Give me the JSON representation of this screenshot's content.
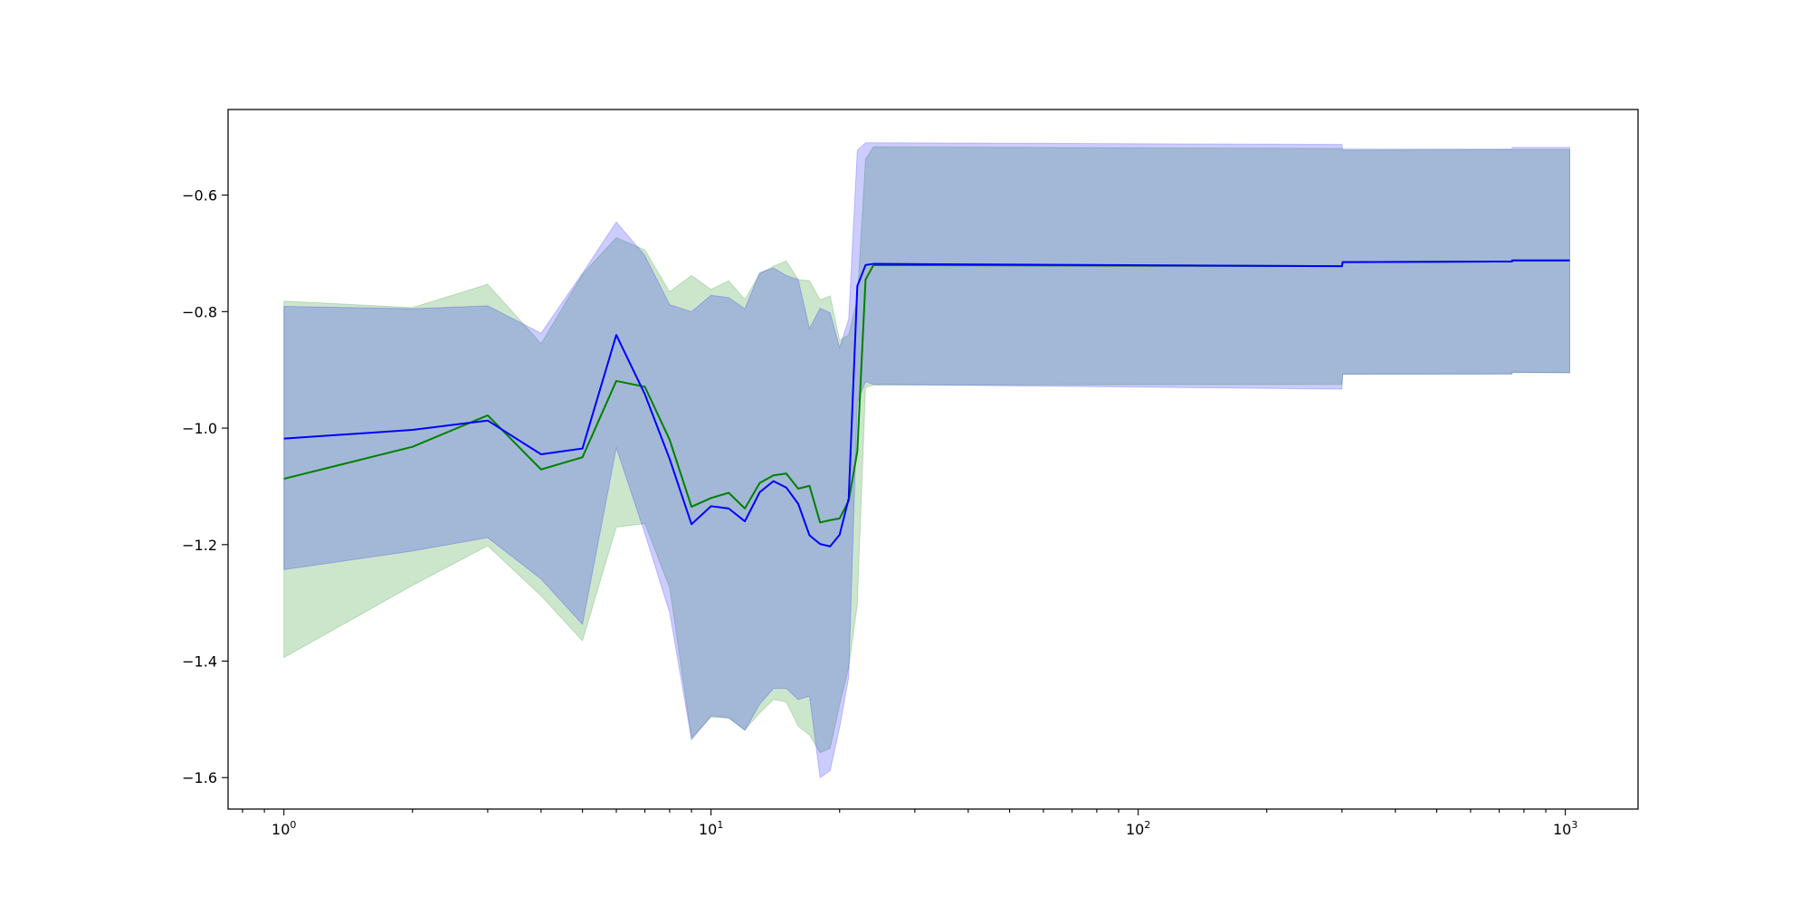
{
  "chart_data": {
    "type": "line",
    "title": "",
    "xlabel": "",
    "ylabel": "",
    "x_scale": "log",
    "xlim": [
      0.74,
      1480
    ],
    "ylim": [
      -1.654,
      -0.453
    ],
    "grid": false,
    "legend": "none",
    "x_ticks": [
      {
        "value": 1,
        "base": "10",
        "exp": "0"
      },
      {
        "value": 10,
        "base": "10",
        "exp": "1"
      },
      {
        "value": 100,
        "base": "10",
        "exp": "2"
      },
      {
        "value": 1000,
        "base": "10",
        "exp": "3"
      }
    ],
    "y_ticks": [
      {
        "value": -0.6,
        "label": "−0.6"
      },
      {
        "value": -0.8,
        "label": "−0.8"
      },
      {
        "value": -1.0,
        "label": "−1.0"
      },
      {
        "value": -1.2,
        "label": "−1.2"
      },
      {
        "value": -1.4,
        "label": "−1.4"
      },
      {
        "value": -1.6,
        "label": "−1.6"
      }
    ],
    "series": [
      {
        "color": "#008000",
        "band_color": "#008000",
        "x": [
          1,
          2,
          3,
          4,
          5,
          6,
          7,
          8,
          9,
          10,
          11,
          12,
          13,
          14,
          15,
          16,
          17,
          18,
          19,
          20,
          21,
          22,
          23,
          24,
          300,
          301,
          750,
          751,
          1024
        ],
        "y": [
          -1.087,
          -1.032,
          -0.978,
          -1.071,
          -1.05,
          -0.919,
          -0.929,
          -1.02,
          -1.135,
          -1.12,
          -1.111,
          -1.138,
          -1.094,
          -1.081,
          -1.078,
          -1.104,
          -1.099,
          -1.162,
          -1.158,
          -1.155,
          -1.125,
          -1.04,
          -0.745,
          -0.72,
          -0.722,
          -0.715,
          -0.714,
          -0.712,
          -0.712
        ],
        "lower": [
          -1.394,
          -1.27,
          -1.202,
          -1.288,
          -1.365,
          -1.17,
          -1.164,
          -1.274,
          -1.532,
          -1.496,
          -1.498,
          -1.518,
          -1.489,
          -1.466,
          -1.47,
          -1.512,
          -1.527,
          -1.557,
          -1.55,
          -1.475,
          -1.411,
          -1.303,
          -0.93,
          -0.926,
          -0.925,
          -0.908,
          -0.907,
          -0.905,
          -0.905
        ],
        "upper": [
          -0.782,
          -0.793,
          -0.753,
          -0.855,
          -0.736,
          -0.673,
          -0.694,
          -0.766,
          -0.738,
          -0.762,
          -0.747,
          -0.779,
          -0.735,
          -0.722,
          -0.713,
          -0.745,
          -0.747,
          -0.78,
          -0.773,
          -0.849,
          -0.84,
          -0.777,
          -0.538,
          -0.517,
          -0.52,
          -0.523,
          -0.522,
          -0.522,
          -0.522
        ]
      },
      {
        "color": "#0000ff",
        "band_color": "#0000ff",
        "x": [
          1,
          2,
          3,
          4,
          5,
          6,
          7,
          8,
          9,
          10,
          11,
          12,
          13,
          14,
          15,
          16,
          17,
          18,
          19,
          20,
          21,
          22,
          23,
          24,
          300,
          301,
          750,
          751,
          1024
        ],
        "y": [
          -1.018,
          -1.003,
          -0.987,
          -1.045,
          -1.035,
          -0.84,
          -0.942,
          -1.053,
          -1.165,
          -1.134,
          -1.138,
          -1.16,
          -1.11,
          -1.091,
          -1.102,
          -1.13,
          -1.184,
          -1.199,
          -1.203,
          -1.183,
          -1.121,
          -0.756,
          -0.72,
          -0.718,
          -0.722,
          -0.715,
          -0.714,
          -0.712,
          -0.712
        ],
        "lower": [
          -1.243,
          -1.211,
          -1.188,
          -1.259,
          -1.337,
          -1.034,
          -1.181,
          -1.317,
          -1.535,
          -1.494,
          -1.497,
          -1.519,
          -1.474,
          -1.447,
          -1.447,
          -1.466,
          -1.46,
          -1.6,
          -1.588,
          -1.514,
          -1.428,
          -0.956,
          -0.92,
          -0.925,
          -0.933,
          -0.907,
          -0.907,
          -0.904,
          -0.905
        ],
        "upper": [
          -0.791,
          -0.795,
          -0.79,
          -0.837,
          -0.734,
          -0.646,
          -0.704,
          -0.788,
          -0.8,
          -0.772,
          -0.776,
          -0.795,
          -0.733,
          -0.725,
          -0.738,
          -0.745,
          -0.829,
          -0.794,
          -0.802,
          -0.862,
          -0.813,
          -0.523,
          -0.51,
          -0.51,
          -0.513,
          -0.521,
          -0.521,
          -0.518,
          -0.518
        ]
      }
    ]
  }
}
